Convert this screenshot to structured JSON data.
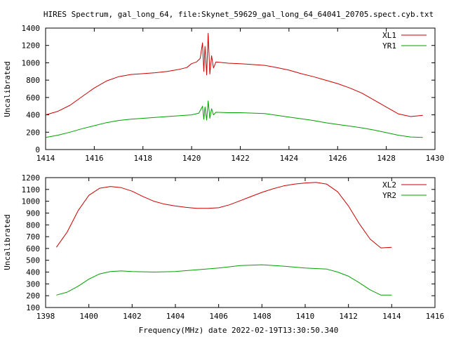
{
  "title": "HIRES Spectrum, gal_long_64, file:Skynet_59629_gal_long_64_64041_20705.spect.cyb.txt",
  "xlabel": "Frequency(MHz) date 2022-02-19T13:30:50.340",
  "colors": {
    "red": "#cc0000",
    "green": "#00a000"
  },
  "chart_data": [
    {
      "type": "line",
      "ylabel": "Uncalibrated",
      "xlim": [
        1414,
        1430
      ],
      "ylim": [
        0,
        1400
      ],
      "xticks": [
        1414,
        1416,
        1418,
        1420,
        1422,
        1424,
        1426,
        1428,
        1430
      ],
      "yticks": [
        0,
        200,
        400,
        600,
        800,
        1000,
        1200,
        1400
      ],
      "legend_position": "top-right",
      "grid": false,
      "series": [
        {
          "name": "XL1",
          "color": "red",
          "points": [
            [
              1414.0,
              400
            ],
            [
              1414.5,
              440
            ],
            [
              1415.0,
              510
            ],
            [
              1415.5,
              610
            ],
            [
              1416.0,
              710
            ],
            [
              1416.5,
              790
            ],
            [
              1417.0,
              840
            ],
            [
              1417.5,
              865
            ],
            [
              1418.0,
              875
            ],
            [
              1418.5,
              885
            ],
            [
              1419.0,
              900
            ],
            [
              1419.5,
              925
            ],
            [
              1419.8,
              945
            ],
            [
              1420.0,
              990
            ],
            [
              1420.2,
              1010
            ],
            [
              1420.35,
              1050
            ],
            [
              1420.45,
              1230
            ],
            [
              1420.5,
              900
            ],
            [
              1420.55,
              1190
            ],
            [
              1420.62,
              860
            ],
            [
              1420.68,
              1340
            ],
            [
              1420.75,
              870
            ],
            [
              1420.82,
              1080
            ],
            [
              1420.9,
              940
            ],
            [
              1421.0,
              1010
            ],
            [
              1421.5,
              995
            ],
            [
              1422.0,
              990
            ],
            [
              1422.5,
              980
            ],
            [
              1423.0,
              970
            ],
            [
              1423.5,
              945
            ],
            [
              1424.0,
              915
            ],
            [
              1424.5,
              875
            ],
            [
              1425.0,
              840
            ],
            [
              1425.5,
              800
            ],
            [
              1426.0,
              760
            ],
            [
              1426.5,
              710
            ],
            [
              1427.0,
              650
            ],
            [
              1427.5,
              570
            ],
            [
              1428.0,
              490
            ],
            [
              1428.5,
              410
            ],
            [
              1429.0,
              380
            ],
            [
              1429.5,
              395
            ]
          ]
        },
        {
          "name": "YR1",
          "color": "green",
          "points": [
            [
              1414.0,
              140
            ],
            [
              1414.5,
              165
            ],
            [
              1415.0,
              200
            ],
            [
              1415.5,
              240
            ],
            [
              1416.0,
              275
            ],
            [
              1416.5,
              310
            ],
            [
              1417.0,
              335
            ],
            [
              1417.5,
              350
            ],
            [
              1418.0,
              360
            ],
            [
              1418.5,
              370
            ],
            [
              1419.0,
              380
            ],
            [
              1419.5,
              390
            ],
            [
              1420.0,
              400
            ],
            [
              1420.3,
              420
            ],
            [
              1420.45,
              500
            ],
            [
              1420.5,
              350
            ],
            [
              1420.55,
              490
            ],
            [
              1420.62,
              340
            ],
            [
              1420.68,
              560
            ],
            [
              1420.75,
              360
            ],
            [
              1420.82,
              470
            ],
            [
              1420.9,
              400
            ],
            [
              1421.0,
              430
            ],
            [
              1421.5,
              425
            ],
            [
              1422.0,
              425
            ],
            [
              1422.5,
              420
            ],
            [
              1423.0,
              415
            ],
            [
              1423.5,
              395
            ],
            [
              1424.0,
              375
            ],
            [
              1424.5,
              355
            ],
            [
              1425.0,
              335
            ],
            [
              1425.5,
              310
            ],
            [
              1426.0,
              290
            ],
            [
              1426.5,
              270
            ],
            [
              1427.0,
              250
            ],
            [
              1427.5,
              225
            ],
            [
              1428.0,
              195
            ],
            [
              1428.5,
              165
            ],
            [
              1429.0,
              145
            ],
            [
              1429.5,
              140
            ]
          ]
        }
      ]
    },
    {
      "type": "line",
      "ylabel": "Uncalibrated",
      "xlim": [
        1398,
        1416
      ],
      "ylim": [
        100,
        1200
      ],
      "xticks": [
        1398,
        1400,
        1402,
        1404,
        1406,
        1408,
        1410,
        1412,
        1414,
        1416
      ],
      "yticks": [
        100,
        200,
        300,
        400,
        500,
        600,
        700,
        800,
        900,
        1000,
        1100,
        1200
      ],
      "legend_position": "top-right",
      "grid": false,
      "series": [
        {
          "name": "XL2",
          "color": "red",
          "points": [
            [
              1398.5,
              610
            ],
            [
              1399.0,
              740
            ],
            [
              1399.5,
              920
            ],
            [
              1400.0,
              1050
            ],
            [
              1400.5,
              1110
            ],
            [
              1401.0,
              1125
            ],
            [
              1401.5,
              1115
            ],
            [
              1402.0,
              1085
            ],
            [
              1402.5,
              1040
            ],
            [
              1403.0,
              1000
            ],
            [
              1403.5,
              975
            ],
            [
              1404.0,
              960
            ],
            [
              1404.5,
              948
            ],
            [
              1405.0,
              940
            ],
            [
              1405.5,
              940
            ],
            [
              1406.0,
              945
            ],
            [
              1406.5,
              970
            ],
            [
              1407.0,
              1005
            ],
            [
              1407.5,
              1040
            ],
            [
              1408.0,
              1075
            ],
            [
              1408.5,
              1105
            ],
            [
              1409.0,
              1130
            ],
            [
              1409.5,
              1145
            ],
            [
              1410.0,
              1155
            ],
            [
              1410.5,
              1160
            ],
            [
              1411.0,
              1145
            ],
            [
              1411.5,
              1080
            ],
            [
              1412.0,
              960
            ],
            [
              1412.5,
              810
            ],
            [
              1413.0,
              680
            ],
            [
              1413.5,
              605
            ],
            [
              1414.0,
              610
            ]
          ]
        },
        {
          "name": "YR2",
          "color": "green",
          "points": [
            [
              1398.5,
              205
            ],
            [
              1399.0,
              230
            ],
            [
              1399.5,
              280
            ],
            [
              1400.0,
              340
            ],
            [
              1400.5,
              385
            ],
            [
              1401.0,
              405
            ],
            [
              1401.5,
              410
            ],
            [
              1402.0,
              405
            ],
            [
              1403.0,
              400
            ],
            [
              1404.0,
              405
            ],
            [
              1405.0,
              420
            ],
            [
              1406.0,
              435
            ],
            [
              1407.0,
              455
            ],
            [
              1408.0,
              462
            ],
            [
              1409.0,
              450
            ],
            [
              1410.0,
              435
            ],
            [
              1411.0,
              425
            ],
            [
              1411.5,
              400
            ],
            [
              1412.0,
              365
            ],
            [
              1412.5,
              310
            ],
            [
              1413.0,
              250
            ],
            [
              1413.5,
              205
            ],
            [
              1414.0,
              205
            ]
          ]
        }
      ]
    }
  ]
}
